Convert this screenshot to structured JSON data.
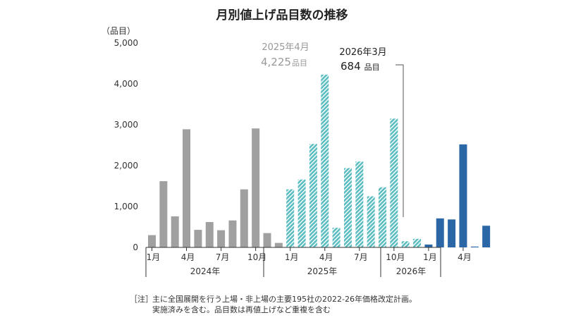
{
  "chart_data": {
    "type": "bar",
    "title": "月別値上げ品目数の推移",
    "ylabel": "（品目）",
    "ylim": [
      0,
      5000
    ],
    "yticks": [
      0,
      1000,
      2000,
      3000,
      4000,
      5000
    ],
    "ytick_labels": [
      "0",
      "1,000",
      "2,000",
      "3,000",
      "4,000",
      "5,000"
    ],
    "month_tick_labels": [
      "1月",
      "4月",
      "7月",
      "10月",
      "1月",
      "4月",
      "7月",
      "10月",
      "1月",
      "4月"
    ],
    "series": [
      {
        "name": "2024年",
        "color": "#a0a0a0",
        "pattern": "solid",
        "values": [
          300,
          1620,
          760,
          2890,
          430,
          620,
          420,
          660,
          1420,
          2910,
          350,
          110
        ]
      },
      {
        "name": "2025年",
        "color": "#5bbdc0",
        "pattern": "hatch",
        "values": [
          1420,
          1660,
          2530,
          4225,
          480,
          1940,
          2100,
          1250,
          1470,
          3150,
          150,
          210
        ]
      },
      {
        "name": "2026年",
        "color": "#2b67a6",
        "pattern": "solid",
        "values": [
          70,
          710,
          684,
          2520,
          20,
          530
        ]
      }
    ],
    "annotations": [
      {
        "label": "2025年4月",
        "value": "4,225",
        "unit": "品目"
      },
      {
        "label": "2026年3月",
        "value": "684",
        "unit": "品目"
      }
    ]
  },
  "footnote": {
    "tag": "［注］",
    "line1": "主に全国展開を行う上場・非上場の主要195社の2022-26年価格改定計画。",
    "line2": "実施済みを含む。品目数は再値上げなど重複を含む"
  }
}
